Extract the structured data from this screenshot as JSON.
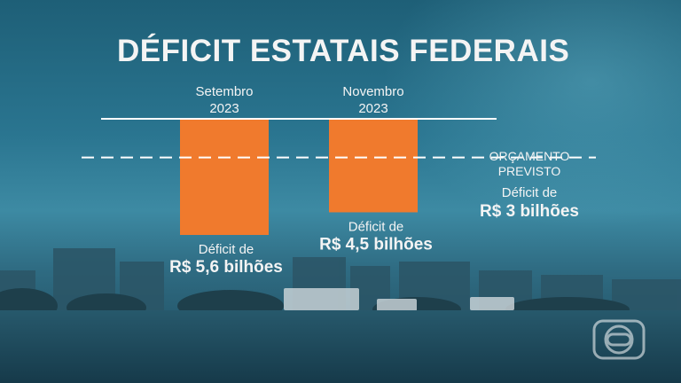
{
  "title": "DÉFICIT ESTATAIS FEDERAIS",
  "chart_data": {
    "type": "bar",
    "categories": [
      "Setembro 2023",
      "Novembro 2023"
    ],
    "category_lines": [
      [
        "Setembro",
        "2023"
      ],
      [
        "Novembro",
        "2023"
      ]
    ],
    "values": [
      5.6,
      4.5
    ],
    "value_labels": [
      [
        "Déficit de",
        "R$ 5,6 bilhões"
      ],
      [
        "Déficit de",
        "R$ 4,5 bilhões"
      ]
    ],
    "reference": {
      "value": 3,
      "label_lines": [
        "ORÇAMENTO",
        "PREVISTO",
        "Déficit de",
        "R$ 3 bilhões"
      ]
    },
    "bar_color": "#f07a2d",
    "ylim": [
      0,
      6
    ]
  },
  "colors": {
    "text": "#f4f4f4",
    "bar": "#f07a2d"
  }
}
